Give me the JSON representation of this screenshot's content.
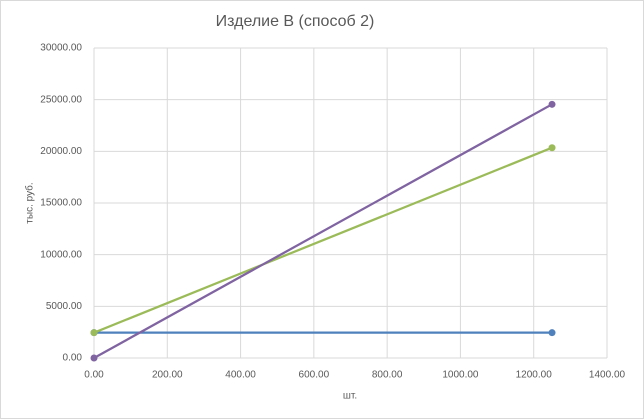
{
  "chart_data": {
    "type": "scatter-line",
    "title": "Изделие B (способ 2)",
    "x_label": "шт.",
    "y_label": "тыс. руб.",
    "series": [
      {
        "color": "#4f81bd",
        "x": [
          0,
          1250
        ],
        "values": [
          2450,
          2450
        ]
      },
      {
        "color": "#9bbb59",
        "x": [
          0,
          1250
        ],
        "values": [
          2450,
          20350
        ]
      },
      {
        "color": "#8064a2",
        "x": [
          0,
          1250
        ],
        "values": [
          0,
          24550
        ]
      }
    ],
    "xlim": [
      0,
      1400
    ],
    "xticks": [
      {
        "value": 0,
        "label": "0.00"
      },
      {
        "value": 200,
        "label": "200.00"
      },
      {
        "value": 400,
        "label": "400.00"
      },
      {
        "value": 600,
        "label": "600.00"
      },
      {
        "value": 800,
        "label": "800.00"
      },
      {
        "value": 1000,
        "label": "1000.00"
      },
      {
        "value": 1200,
        "label": "1200.00"
      },
      {
        "value": 1400,
        "label": "1400.00"
      }
    ],
    "ylim": [
      0,
      30000
    ],
    "yticks": [
      {
        "value": 0,
        "label": "0.00"
      },
      {
        "value": 5000,
        "label": "5000.00"
      },
      {
        "value": 10000,
        "label": "10000.00"
      },
      {
        "value": 15000,
        "label": "15000.00"
      },
      {
        "value": 20000,
        "label": "20000.00"
      },
      {
        "value": 25000,
        "label": "25000.00"
      },
      {
        "value": 30000,
        "label": "30000.00"
      }
    ],
    "grid": true
  }
}
